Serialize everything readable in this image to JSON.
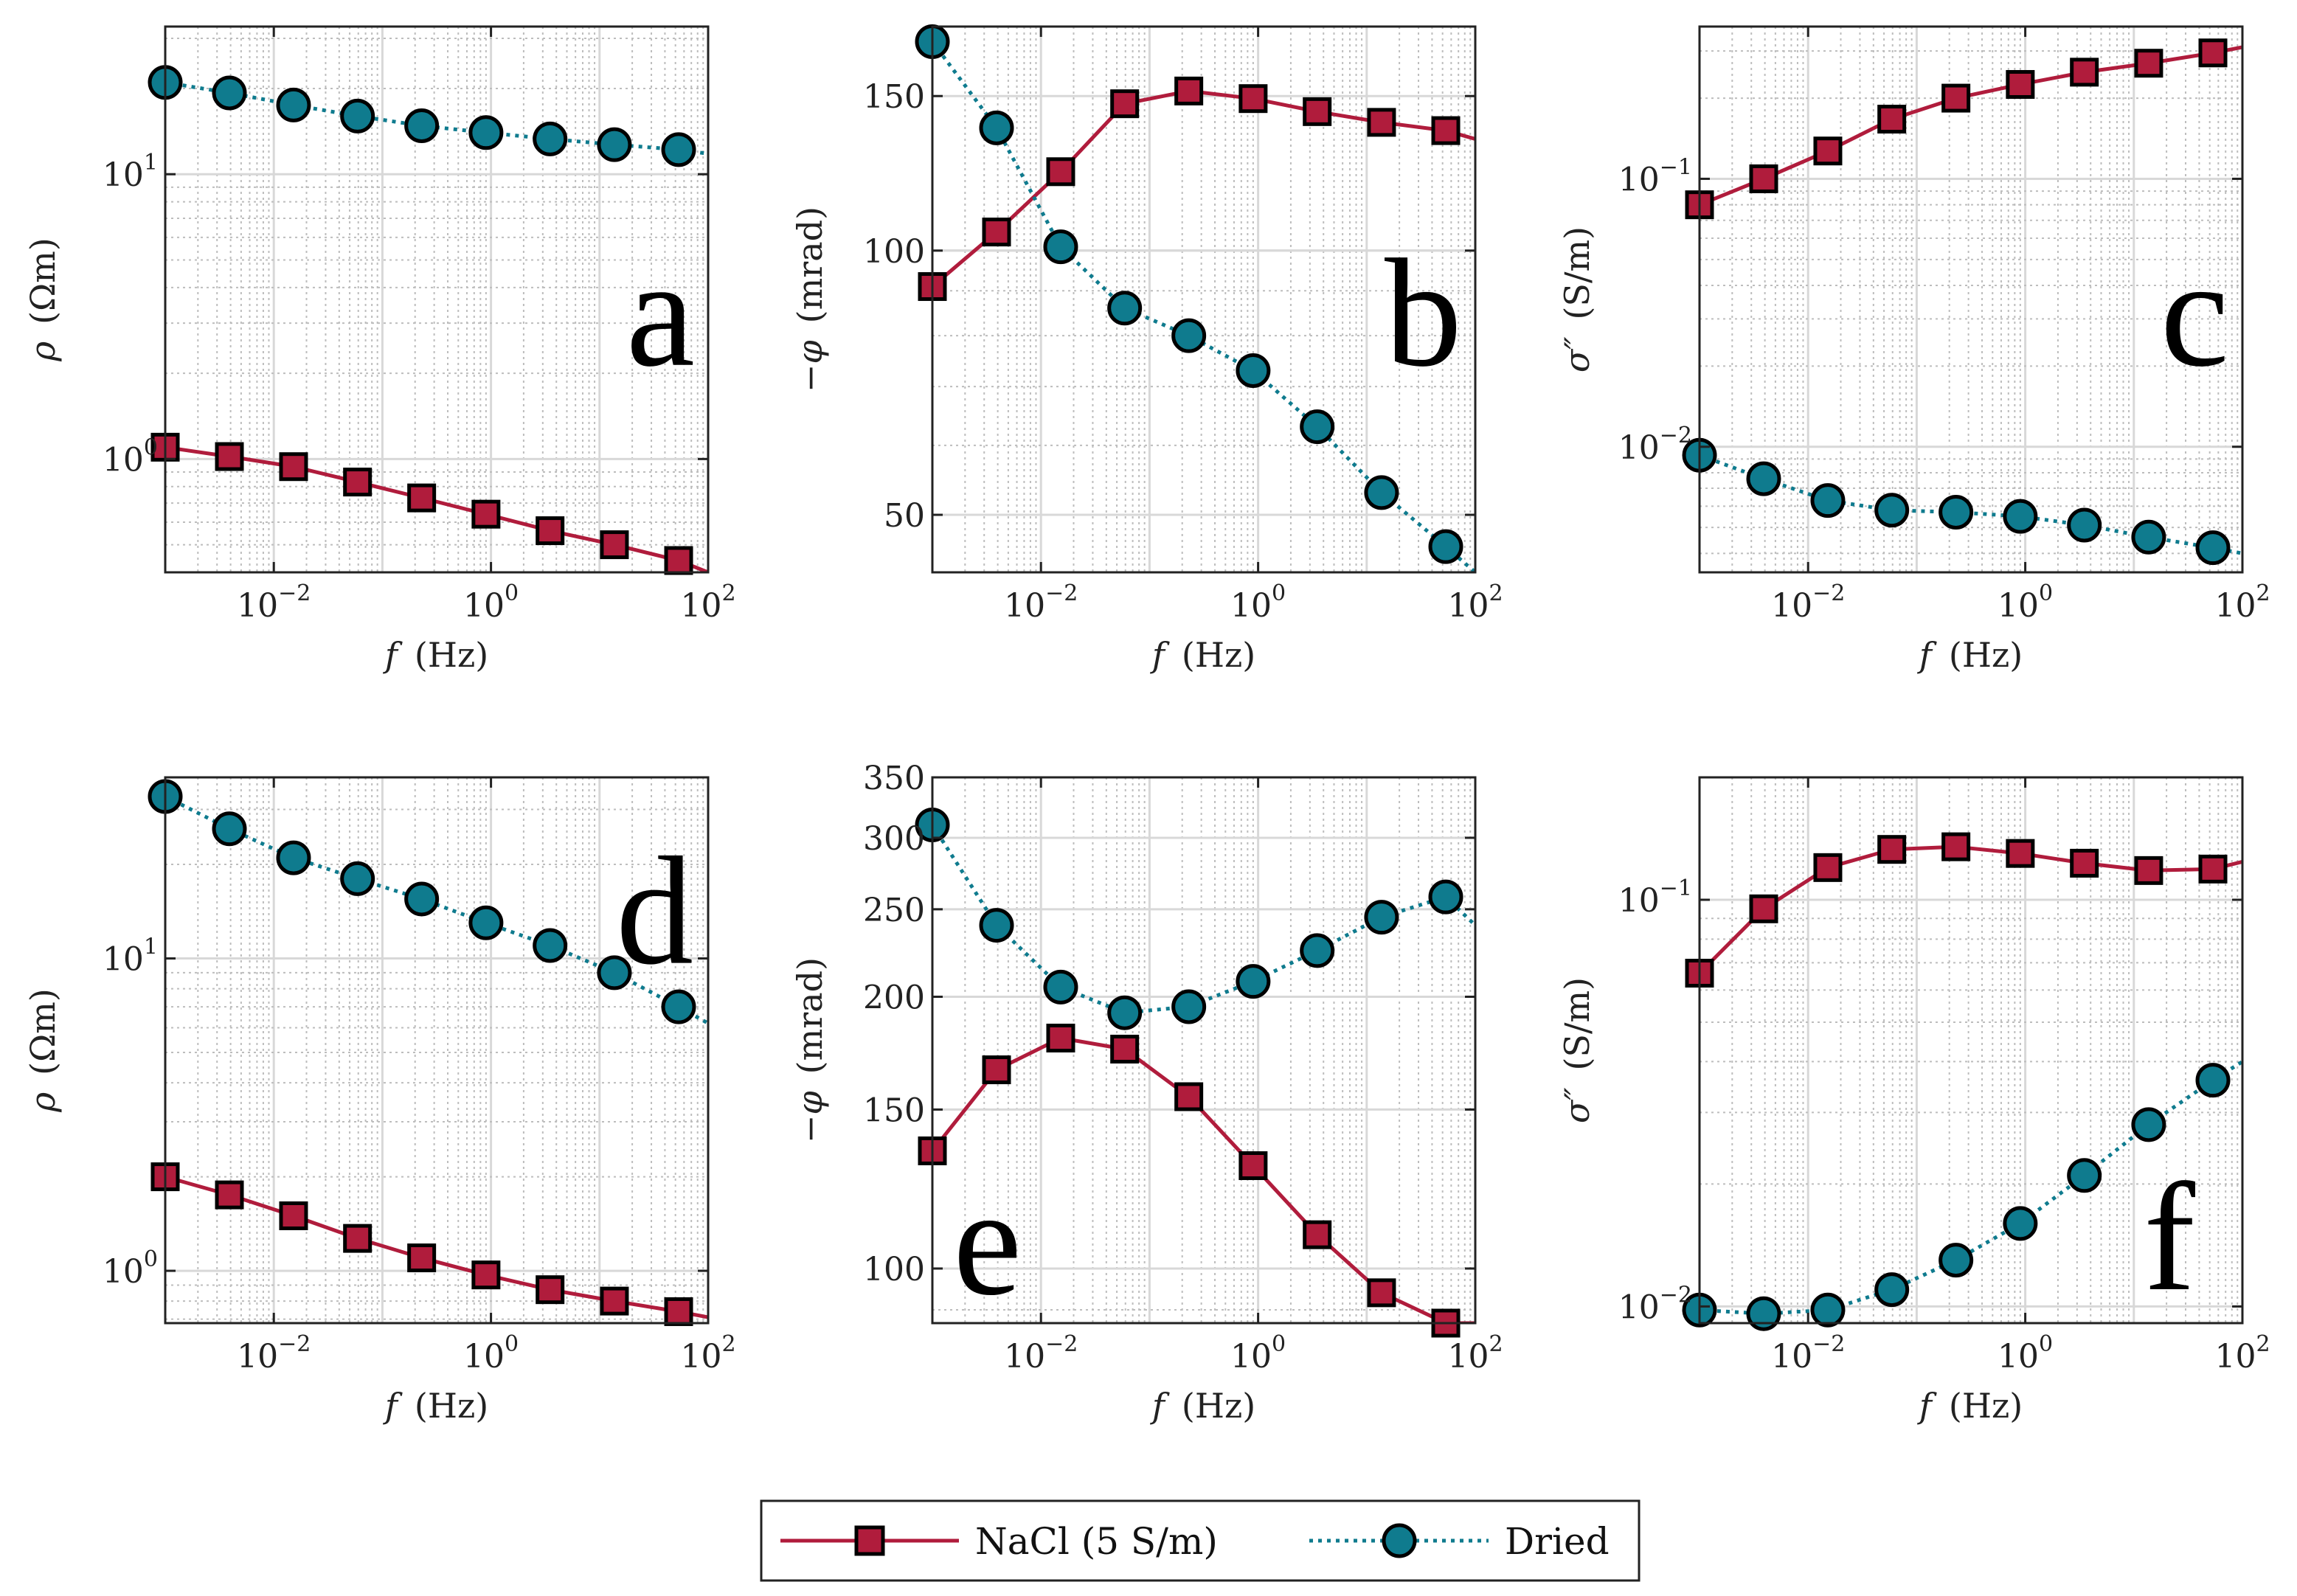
{
  "colors": {
    "nacl": "#b01c3c",
    "dried": "#0f7b8e",
    "marker_edge": "#000000",
    "axis": "#222222",
    "grid_major": "#d8d8d8",
    "grid_minor": "#bdbdbd"
  },
  "legend": {
    "nacl_label": "NaCl (5 S/m)",
    "dried_label": "Dried"
  },
  "chart_data": [
    {
      "id": "a",
      "type": "line",
      "letter": "a",
      "xscale": "log",
      "yscale": "log",
      "xlim": [
        0.001,
        100
      ],
      "ylim": [
        0.4,
        33
      ],
      "xlabel_italic": "f",
      "xlabel_rest": "(Hz)",
      "ylabel_sym": "ρ",
      "ylabel_rest": "(Ωm)",
      "xticks": [
        {
          "v": 0.01,
          "base": "10",
          "exp": "−2"
        },
        {
          "v": 1,
          "base": "10",
          "exp": "0"
        },
        {
          "v": 100,
          "base": "10",
          "exp": "2"
        }
      ],
      "yticks": [
        {
          "v": 1,
          "base": "10",
          "exp": "0"
        },
        {
          "v": 10,
          "base": "10",
          "exp": "1"
        }
      ],
      "letter_pos": "right-middle",
      "series": [
        {
          "name": "NaCl (5 S/m)",
          "key": "nacl",
          "marker": "square",
          "x": [
            0.001,
            0.0039,
            0.0152,
            0.059,
            0.23,
            0.9,
            3.5,
            13.7,
            53.5
          ],
          "y": [
            1.1,
            1.02,
            0.94,
            0.83,
            0.73,
            0.64,
            0.56,
            0.5,
            0.44
          ],
          "line_x_end": 100,
          "line_y_end": 0.4
        },
        {
          "name": "Dried",
          "key": "dried",
          "marker": "circle",
          "x": [
            0.001,
            0.0039,
            0.0152,
            0.059,
            0.23,
            0.9,
            3.5,
            13.7,
            53.5
          ],
          "y": [
            21,
            19.3,
            17.5,
            16,
            14.8,
            14,
            13.3,
            12.7,
            12.2
          ],
          "line_x_end": 100,
          "line_y_end": 11.8
        }
      ]
    },
    {
      "id": "b",
      "type": "line",
      "letter": "b",
      "xscale": "log",
      "yscale": "log",
      "xlim": [
        0.001,
        100
      ],
      "ylim": [
        43,
        180
      ],
      "xlabel_italic": "f",
      "xlabel_rest": "(Hz)",
      "ylabel_sym": "−φ",
      "ylabel_rest": "(mrad)",
      "xticks": [
        {
          "v": 0.01,
          "base": "10",
          "exp": "−2"
        },
        {
          "v": 1,
          "base": "10",
          "exp": "0"
        },
        {
          "v": 100,
          "base": "10",
          "exp": "2"
        }
      ],
      "yticks": [
        {
          "v": 50,
          "text": "50"
        },
        {
          "v": 100,
          "text": "100"
        },
        {
          "v": 150,
          "text": "150"
        }
      ],
      "letter_pos": "right-middle",
      "series": [
        {
          "name": "NaCl (5 S/m)",
          "key": "nacl",
          "marker": "square",
          "x": [
            0.001,
            0.0039,
            0.0152,
            0.059,
            0.23,
            0.9,
            3.5,
            13.7,
            53.5
          ],
          "y": [
            91,
            105,
            123,
            147,
            152,
            149,
            144,
            140,
            137
          ],
          "line_x_end": 100,
          "line_y_end": 134
        },
        {
          "name": "Dried",
          "key": "dried",
          "marker": "circle",
          "x": [
            0.001,
            0.0039,
            0.0152,
            0.059,
            0.23,
            0.9,
            3.5,
            13.7,
            53.5
          ],
          "y": [
            173,
            138,
            101,
            86,
            80,
            73,
            63,
            53,
            46
          ],
          "line_x_end": 100,
          "line_y_end": 43
        }
      ]
    },
    {
      "id": "c",
      "type": "line",
      "letter": "c",
      "xscale": "log",
      "yscale": "log",
      "xlim": [
        0.001,
        100
      ],
      "ylim": [
        0.0034,
        0.37
      ],
      "xlabel_italic": "f",
      "xlabel_rest": "(Hz)",
      "ylabel_sym": "σ″",
      "ylabel_rest": "(S/m)",
      "xticks": [
        {
          "v": 0.01,
          "base": "10",
          "exp": "−2"
        },
        {
          "v": 1,
          "base": "10",
          "exp": "0"
        },
        {
          "v": 100,
          "base": "10",
          "exp": "2"
        }
      ],
      "yticks": [
        {
          "v": 0.01,
          "base": "10",
          "exp": "−2"
        },
        {
          "v": 0.1,
          "base": "10",
          "exp": "−1"
        }
      ],
      "letter_pos": "right-middle",
      "series": [
        {
          "name": "NaCl (5 S/m)",
          "key": "nacl",
          "marker": "square",
          "x": [
            0.001,
            0.0039,
            0.0152,
            0.059,
            0.23,
            0.9,
            3.5,
            13.7,
            53.5
          ],
          "y": [
            0.08,
            0.1,
            0.127,
            0.167,
            0.2,
            0.225,
            0.25,
            0.27,
            0.295
          ],
          "line_x_end": 100,
          "line_y_end": 0.31
        },
        {
          "name": "Dried",
          "key": "dried",
          "marker": "circle",
          "x": [
            0.001,
            0.0039,
            0.0152,
            0.059,
            0.23,
            0.9,
            3.5,
            13.7,
            53.5
          ],
          "y": [
            0.0093,
            0.0076,
            0.0063,
            0.0058,
            0.0057,
            0.0055,
            0.0051,
            0.0046,
            0.0042
          ],
          "line_x_end": 100,
          "line_y_end": 0.004
        }
      ]
    },
    {
      "id": "d",
      "type": "line",
      "letter": "d",
      "xscale": "log",
      "yscale": "log",
      "xlim": [
        0.001,
        100
      ],
      "ylim": [
        0.68,
        38
      ],
      "xlabel_italic": "f",
      "xlabel_rest": "(Hz)",
      "ylabel_sym": "ρ",
      "ylabel_rest": "(Ωm)",
      "xticks": [
        {
          "v": 0.01,
          "base": "10",
          "exp": "−2"
        },
        {
          "v": 1,
          "base": "10",
          "exp": "0"
        },
        {
          "v": 100,
          "base": "10",
          "exp": "2"
        }
      ],
      "yticks": [
        {
          "v": 1,
          "base": "10",
          "exp": "0"
        },
        {
          "v": 10,
          "base": "10",
          "exp": "1"
        }
      ],
      "letter_pos": "right-upper",
      "series": [
        {
          "name": "NaCl (5 S/m)",
          "key": "nacl",
          "marker": "square",
          "x": [
            0.001,
            0.0039,
            0.0152,
            0.059,
            0.23,
            0.9,
            3.5,
            13.7,
            53.5
          ],
          "y": [
            2.0,
            1.75,
            1.5,
            1.27,
            1.1,
            0.97,
            0.87,
            0.8,
            0.74
          ],
          "line_x_end": 100,
          "line_y_end": 0.71
        },
        {
          "name": "Dried",
          "key": "dried",
          "marker": "circle",
          "x": [
            0.001,
            0.0039,
            0.0152,
            0.059,
            0.23,
            0.9,
            3.5,
            13.7,
            53.5
          ],
          "y": [
            33,
            26,
            21,
            18,
            15.5,
            13,
            11,
            9,
            7
          ],
          "line_x_end": 100,
          "line_y_end": 6.2
        }
      ]
    },
    {
      "id": "e",
      "type": "line",
      "letter": "e",
      "xscale": "log",
      "yscale": "log",
      "xlim": [
        0.001,
        100
      ],
      "ylim": [
        87,
        350
      ],
      "xlabel_italic": "f",
      "xlabel_rest": "(Hz)",
      "ylabel_sym": "−φ",
      "ylabel_rest": "(mrad)",
      "xticks": [
        {
          "v": 0.01,
          "base": "10",
          "exp": "−2"
        },
        {
          "v": 1,
          "base": "10",
          "exp": "0"
        },
        {
          "v": 100,
          "base": "10",
          "exp": "2"
        }
      ],
      "yticks": [
        {
          "v": 100,
          "text": "100"
        },
        {
          "v": 150,
          "text": "150"
        },
        {
          "v": 200,
          "text": "200"
        },
        {
          "v": 250,
          "text": "250"
        },
        {
          "v": 300,
          "text": "300"
        },
        {
          "v": 350,
          "text": "350"
        }
      ],
      "letter_pos": "left-lower",
      "series": [
        {
          "name": "NaCl (5 S/m)",
          "key": "nacl",
          "marker": "square",
          "x": [
            0.001,
            0.0039,
            0.0152,
            0.059,
            0.23,
            0.9,
            3.5,
            13.7,
            53.5
          ],
          "y": [
            135,
            166,
            180,
            175,
            155,
            130,
            109,
            94,
            87
          ],
          "line_x_end": 100,
          "line_y_end": 87
        },
        {
          "name": "Dried",
          "key": "dried",
          "marker": "circle",
          "x": [
            0.001,
            0.0039,
            0.0152,
            0.059,
            0.23,
            0.9,
            3.5,
            13.7,
            53.5
          ],
          "y": [
            310,
            240,
            205,
            192,
            195,
            208,
            225,
            245,
            258
          ],
          "line_x_end": 100,
          "line_y_end": 240
        }
      ]
    },
    {
      "id": "f",
      "type": "line",
      "letter": "f",
      "xscale": "log",
      "yscale": "log",
      "xlim": [
        0.001,
        100
      ],
      "ylim": [
        0.0091,
        0.2
      ],
      "xlabel_italic": "f",
      "xlabel_rest": "(Hz)",
      "ylabel_sym": "σ″",
      "ylabel_rest": "(S/m)",
      "xticks": [
        {
          "v": 0.01,
          "base": "10",
          "exp": "−2"
        },
        {
          "v": 1,
          "base": "10",
          "exp": "0"
        },
        {
          "v": 100,
          "base": "10",
          "exp": "2"
        }
      ],
      "yticks": [
        {
          "v": 0.01,
          "base": "10",
          "exp": "−2"
        },
        {
          "v": 0.1,
          "base": "10",
          "exp": "−1"
        }
      ],
      "letter_pos": "right-lower",
      "series": [
        {
          "name": "NaCl (5 S/m)",
          "key": "nacl",
          "marker": "square",
          "x": [
            0.001,
            0.0039,
            0.0152,
            0.059,
            0.23,
            0.9,
            3.5,
            13.7,
            53.5
          ],
          "y": [
            0.066,
            0.095,
            0.12,
            0.133,
            0.135,
            0.13,
            0.123,
            0.118,
            0.119
          ],
          "line_x_end": 100,
          "line_y_end": 0.124
        },
        {
          "name": "Dried",
          "key": "dried",
          "marker": "circle",
          "x": [
            0.001,
            0.0039,
            0.0152,
            0.059,
            0.23,
            0.9,
            3.5,
            13.7,
            53.5
          ],
          "y": [
            0.0098,
            0.0096,
            0.0098,
            0.011,
            0.013,
            0.016,
            0.021,
            0.028,
            0.036
          ],
          "line_x_end": 100,
          "line_y_end": 0.04
        }
      ]
    }
  ]
}
